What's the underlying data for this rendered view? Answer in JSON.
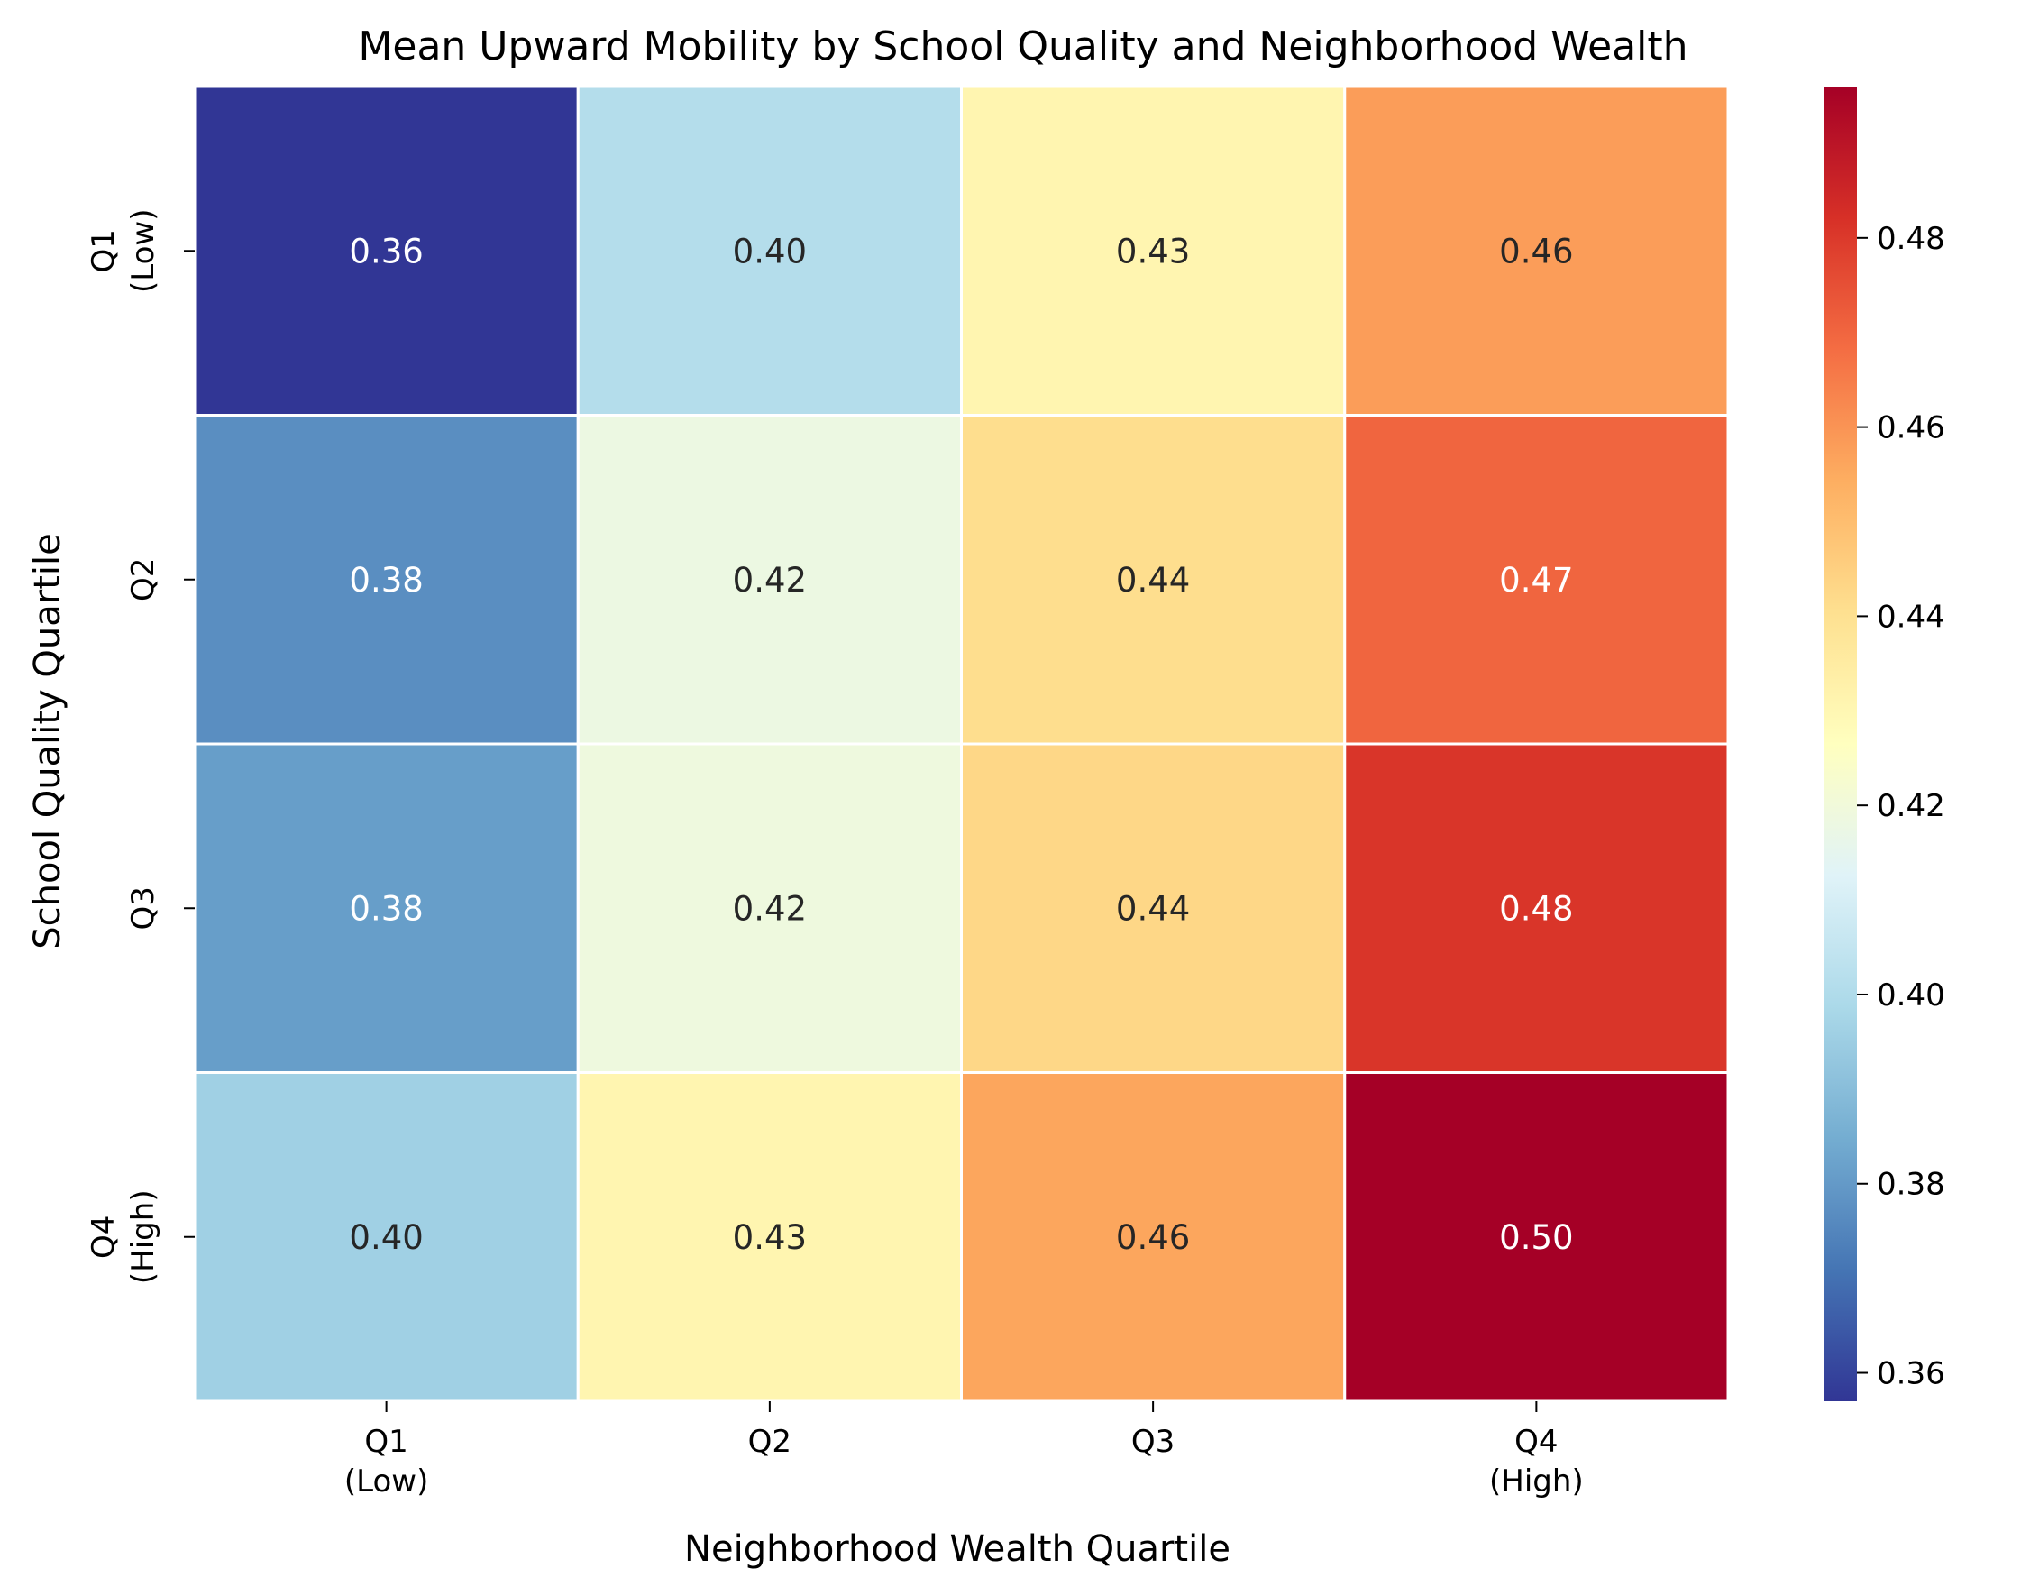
{
  "chart_data": {
    "type": "heatmap",
    "title": "Mean Upward Mobility by School Quality and Neighborhood Wealth",
    "xlabel": "Neighborhood Wealth Quartile",
    "ylabel": "School Quality Quartile",
    "x_categories": [
      [
        "Q1",
        "(Low)"
      ],
      [
        "Q2"
      ],
      [
        "Q3"
      ],
      [
        "Q4",
        "(High)"
      ]
    ],
    "y_categories": [
      [
        "Q1",
        "(Low)"
      ],
      [
        "Q2"
      ],
      [
        "Q3"
      ],
      [
        "Q4",
        "(High)"
      ]
    ],
    "values": [
      [
        0.357,
        0.401,
        0.431,
        0.458
      ],
      [
        0.377,
        0.418,
        0.441,
        0.47
      ],
      [
        0.381,
        0.419,
        0.443,
        0.481
      ],
      [
        0.396,
        0.431,
        0.456,
        0.496
      ]
    ],
    "value_labels": [
      [
        "0.36",
        "0.40",
        "0.43",
        "0.46"
      ],
      [
        "0.38",
        "0.42",
        "0.44",
        "0.47"
      ],
      [
        "0.38",
        "0.42",
        "0.44",
        "0.48"
      ],
      [
        "0.40",
        "0.43",
        "0.46",
        "0.50"
      ]
    ],
    "colormap": "RdYlBu_r",
    "vmin": 0.357,
    "vmax": 0.496,
    "colorbar_ticks": [
      0.36,
      0.38,
      0.4,
      0.42,
      0.44,
      0.46,
      0.48
    ],
    "colorbar_tick_labels": [
      "0.36",
      "0.38",
      "0.40",
      "0.42",
      "0.44",
      "0.46",
      "0.48"
    ],
    "colors": {
      "cell_border": "#ffffff",
      "dark_text": "#262626",
      "light_text": "#ffffff",
      "axis_text": "#000000"
    },
    "legend": "colorbar-right",
    "grid": false
  }
}
